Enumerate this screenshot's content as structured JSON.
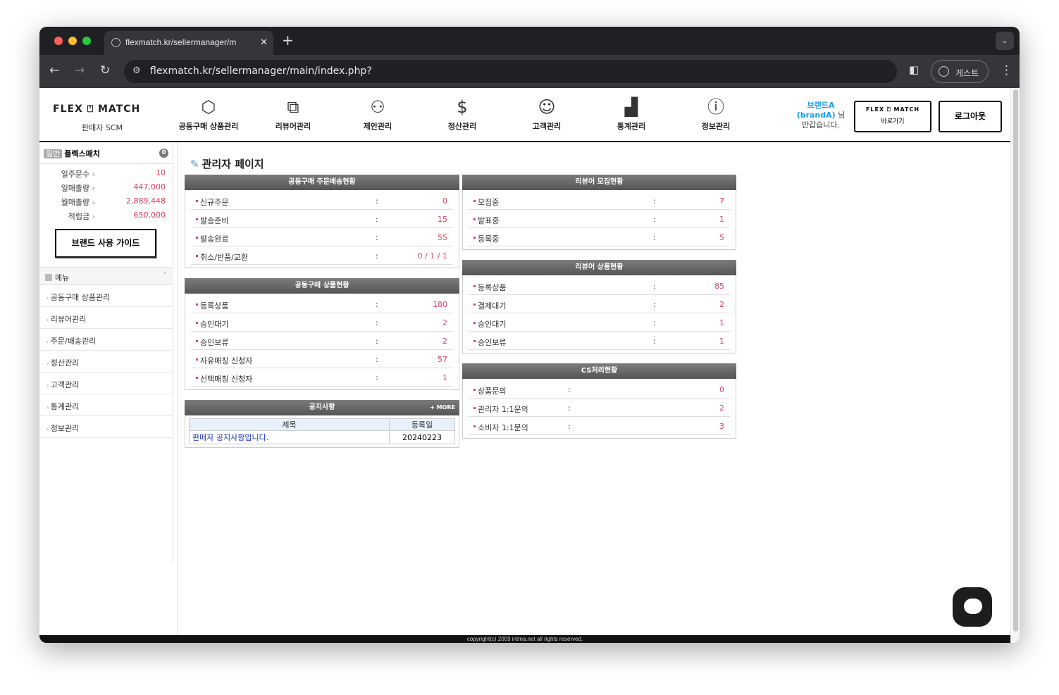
{
  "browser": {
    "tab_title": "flexmatch.kr/sellermanager/m",
    "url": "flexmatch.kr/sellermanager/main/index.php?",
    "profile": "게스트"
  },
  "header": {
    "logo": "FLEX ⍞ MATCH",
    "logo_sub": "판매자 SCM",
    "nav": [
      {
        "label": "공동구매 상품관리",
        "icon": "box-icon",
        "glyph": "⬡"
      },
      {
        "label": "리뷰어관리",
        "icon": "network-box-icon",
        "glyph": "⧉"
      },
      {
        "label": "제안관리",
        "icon": "people-hand-icon",
        "glyph": "⚇"
      },
      {
        "label": "정산관리",
        "icon": "money-hand-icon",
        "glyph": "$"
      },
      {
        "label": "고객관리",
        "icon": "group-icon",
        "glyph": "☺"
      },
      {
        "label": "통계관리",
        "icon": "chart-icon",
        "glyph": "▟"
      },
      {
        "label": "정보관리",
        "icon": "info-icon",
        "glyph": "ⓘ"
      }
    ],
    "greeting_name": "브랜드A (brandA)",
    "greeting_suffix": "님 반갑습니다.",
    "flexmatch_logo": "FLEX ⍞ MATCH",
    "flexmatch_btn": "바로가기",
    "logout": "로그아웃"
  },
  "sidebar": {
    "badge": "일반",
    "name": "플렉스매치",
    "count": "0",
    "stats": [
      {
        "label": "일주문수",
        "value": "10"
      },
      {
        "label": "일매출량",
        "value": "447,000"
      },
      {
        "label": "월매출량",
        "value": "2,889,448"
      },
      {
        "label": "적립금",
        "value": "650,000"
      }
    ],
    "guide": "브랜드 사용 가이드",
    "menu_title": "메뉴",
    "menu": [
      "공동구매 상품관리",
      "리뷰어관리",
      "주문/배송관리",
      "정산관리",
      "고객관리",
      "통계관리",
      "정보관리"
    ]
  },
  "main": {
    "title": "관리자 페이지",
    "panels": [
      {
        "title": "공동구매 주문배송현황",
        "rows": [
          [
            "신규주문",
            "0"
          ],
          [
            "발송준비",
            "15"
          ],
          [
            "발송완료",
            "55"
          ],
          [
            "취소/반품/교환",
            "0 / 1 / 1"
          ]
        ]
      },
      {
        "title": "공동구매 상품현황",
        "rows": [
          [
            "등록상품",
            "180"
          ],
          [
            "승인대기",
            "2"
          ],
          [
            "승인보류",
            "2"
          ],
          [
            "자유매칭 신청자",
            "57"
          ],
          [
            "선택매칭 신청자",
            "1"
          ]
        ]
      },
      {
        "title": "리뷰어 모집현황",
        "rows": [
          [
            "모집중",
            "7"
          ],
          [
            "발표중",
            "1"
          ],
          [
            "등록중",
            "5"
          ]
        ]
      },
      {
        "title": "리뷰어 상품현황",
        "rows": [
          [
            "등록상품",
            "85"
          ],
          [
            "결제대기",
            "2"
          ],
          [
            "승인대기",
            "1"
          ],
          [
            "승인보류",
            "1"
          ]
        ]
      },
      {
        "title": "CS처리현황",
        "rows": [
          [
            "상품문의",
            "0"
          ],
          [
            "관리자 1:1문의",
            "2"
          ],
          [
            "소비자 1:1문의",
            "3"
          ]
        ]
      }
    ],
    "notice": {
      "title": "공지사항",
      "more": "+ MORE",
      "col_title": "제목",
      "col_date": "등록일",
      "rows": [
        {
          "title": "판매자 공지사항입니다.",
          "date": "20240223"
        }
      ]
    }
  },
  "footer": "copyright(c) 2009 intma.net all rights reserved.",
  "colors": {
    "accent": "#e0405e",
    "link": "#1a9ce8"
  }
}
